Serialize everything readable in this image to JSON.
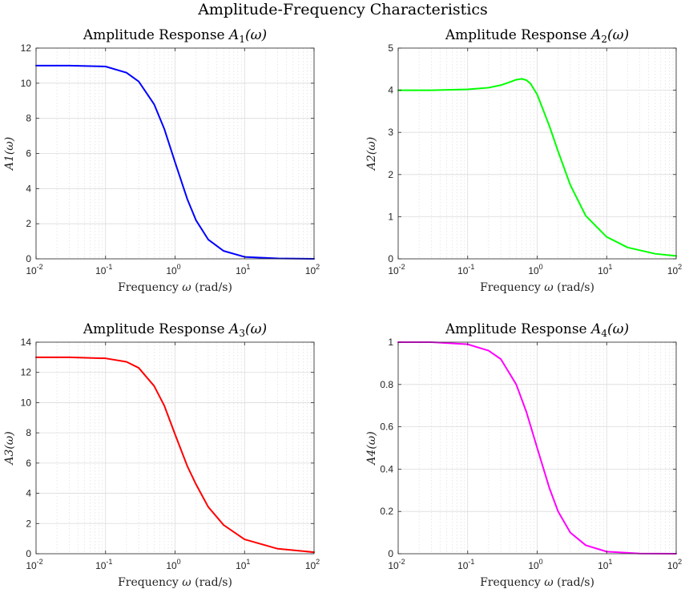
{
  "figure": {
    "title": "Amplitude-Frequency Characteristics"
  },
  "chart_data": [
    {
      "type": "line",
      "title_prefix": "Amplitude Response ",
      "func_main": "A",
      "func_sub": "1",
      "func_arg": "(ω)",
      "ylabel": "A1(ω)",
      "xlabel_text": "Frequency ",
      "xlabel_symbol": "ω",
      "xlabel_unit": " (rad/s)",
      "x_scale": "log",
      "xlim": [
        0.01,
        100
      ],
      "xticks": [
        0.01,
        0.1,
        1,
        10,
        100
      ],
      "xtick_labels": [
        {
          "base": "10",
          "exp": "-2"
        },
        {
          "base": "10",
          "exp": "-1"
        },
        {
          "base": "10",
          "exp": "0"
        },
        {
          "base": "10",
          "exp": "1"
        },
        {
          "base": "10",
          "exp": "2"
        }
      ],
      "ylim": [
        0,
        12
      ],
      "yticks": [
        0,
        2,
        4,
        6,
        8,
        10,
        12
      ],
      "grid": true,
      "color": "#0000ff",
      "series": [
        {
          "x": [
            0.01,
            0.03,
            0.1,
            0.2,
            0.3,
            0.5,
            0.7,
            1,
            1.5,
            2,
            3,
            5,
            10,
            30,
            100
          ],
          "values": [
            11.0,
            11.0,
            10.95,
            10.6,
            10.1,
            8.8,
            7.4,
            5.5,
            3.4,
            2.2,
            1.1,
            0.45,
            0.11,
            0.02,
            0.0
          ]
        }
      ]
    },
    {
      "type": "line",
      "title_prefix": "Amplitude Response ",
      "func_main": "A",
      "func_sub": "2",
      "func_arg": "(ω)",
      "ylabel": "A2(ω)",
      "xlabel_text": "Frequency ",
      "xlabel_symbol": "ω",
      "xlabel_unit": " (rad/s)",
      "x_scale": "log",
      "xlim": [
        0.01,
        100
      ],
      "xticks": [
        0.01,
        0.1,
        1,
        10,
        100
      ],
      "xtick_labels": [
        {
          "base": "10",
          "exp": "-2"
        },
        {
          "base": "10",
          "exp": "-1"
        },
        {
          "base": "10",
          "exp": "0"
        },
        {
          "base": "10",
          "exp": "1"
        },
        {
          "base": "10",
          "exp": "2"
        }
      ],
      "ylim": [
        0,
        5
      ],
      "yticks": [
        0,
        1,
        2,
        3,
        4,
        5
      ],
      "grid": true,
      "color": "#00ff00",
      "series": [
        {
          "x": [
            0.01,
            0.03,
            0.1,
            0.2,
            0.3,
            0.4,
            0.5,
            0.6,
            0.7,
            0.8,
            1,
            1.5,
            2,
            3,
            5,
            10,
            20,
            50,
            100
          ],
          "values": [
            4.0,
            4.0,
            4.02,
            4.06,
            4.12,
            4.19,
            4.25,
            4.27,
            4.24,
            4.16,
            3.9,
            3.15,
            2.55,
            1.75,
            1.02,
            0.52,
            0.27,
            0.12,
            0.07
          ]
        }
      ]
    },
    {
      "type": "line",
      "title_prefix": "Amplitude Response ",
      "func_main": "A",
      "func_sub": "3",
      "func_arg": "(ω)",
      "ylabel": "A3(ω)",
      "xlabel_text": "Frequency ",
      "xlabel_symbol": "ω",
      "xlabel_unit": " (rad/s)",
      "x_scale": "log",
      "xlim": [
        0.01,
        100
      ],
      "xticks": [
        0.01,
        0.1,
        1,
        10,
        100
      ],
      "xtick_labels": [
        {
          "base": "10",
          "exp": "-2"
        },
        {
          "base": "10",
          "exp": "-1"
        },
        {
          "base": "10",
          "exp": "0"
        },
        {
          "base": "10",
          "exp": "1"
        },
        {
          "base": "10",
          "exp": "2"
        }
      ],
      "ylim": [
        0,
        14
      ],
      "yticks": [
        0,
        2,
        4,
        6,
        8,
        10,
        12,
        14
      ],
      "grid": true,
      "color": "#ff0000",
      "series": [
        {
          "x": [
            0.01,
            0.03,
            0.1,
            0.2,
            0.3,
            0.5,
            0.7,
            1,
            1.5,
            2,
            3,
            5,
            10,
            30,
            100
          ],
          "values": [
            13.0,
            13.0,
            12.93,
            12.7,
            12.3,
            11.1,
            9.8,
            7.9,
            5.8,
            4.6,
            3.1,
            1.9,
            0.95,
            0.33,
            0.1
          ]
        }
      ]
    },
    {
      "type": "line",
      "title_prefix": "Amplitude Response ",
      "func_main": "A",
      "func_sub": "4",
      "func_arg": "(ω)",
      "ylabel": "A4(ω)",
      "xlabel_text": "Frequency ",
      "xlabel_symbol": "ω",
      "xlabel_unit": " (rad/s)",
      "x_scale": "log",
      "xlim": [
        0.01,
        100
      ],
      "xticks": [
        0.01,
        0.1,
        1,
        10,
        100
      ],
      "xtick_labels": [
        {
          "base": "10",
          "exp": "-2"
        },
        {
          "base": "10",
          "exp": "-1"
        },
        {
          "base": "10",
          "exp": "0"
        },
        {
          "base": "10",
          "exp": "1"
        },
        {
          "base": "10",
          "exp": "2"
        }
      ],
      "ylim": [
        0,
        1
      ],
      "yticks": [
        0,
        0.2,
        0.4,
        0.6,
        0.8,
        1
      ],
      "grid": true,
      "color": "#ff00ff",
      "series": [
        {
          "x": [
            0.01,
            0.03,
            0.1,
            0.2,
            0.3,
            0.5,
            0.7,
            1,
            1.5,
            2,
            3,
            5,
            10,
            30,
            100
          ],
          "values": [
            1.0,
            1.0,
            0.99,
            0.96,
            0.92,
            0.8,
            0.67,
            0.5,
            0.31,
            0.2,
            0.1,
            0.04,
            0.01,
            0.001,
            0.0
          ]
        }
      ]
    }
  ]
}
